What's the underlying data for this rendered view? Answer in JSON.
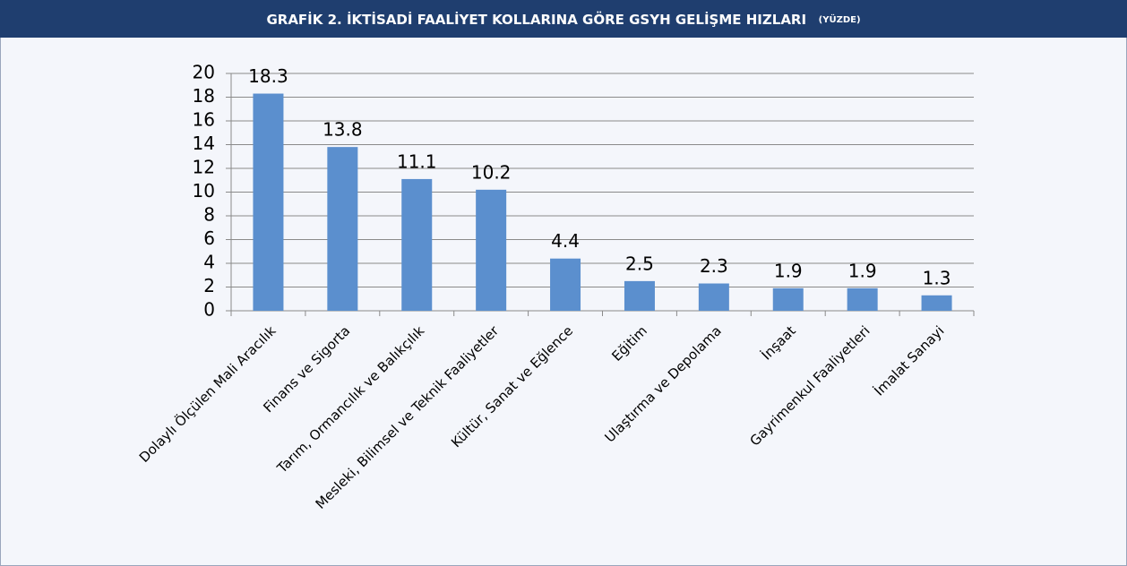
{
  "chart_data": {
    "type": "bar",
    "title": "GRAFİK 2. İKTİSADİ FAALİYET KOLLARINA GÖRE GSYH GELİŞME HIZLARI",
    "subtitle": "(YÜZDE)",
    "categories": [
      "Dolaylı Ölçülen Mali Aracılık",
      "Finans ve Sigorta",
      "Tarım, Ormancılık ve Balıkçılık",
      "Mesleki, Bilimsel ve Teknik Faaliyetler",
      "Kültür, Sanat ve Eğlence",
      "Eğitim",
      "Ulaştırma ve Depolama",
      "İnşaat",
      "Gayrimenkul Faaliyetleri",
      "İmalat Sanayi"
    ],
    "values": [
      18.3,
      13.8,
      11.1,
      10.2,
      4.4,
      2.5,
      2.3,
      1.9,
      1.9,
      1.3
    ],
    "color": "#5b8fce",
    "ylim": [
      0,
      20
    ],
    "yticks": [
      0,
      2,
      4,
      6,
      8,
      10,
      12,
      14,
      16,
      18,
      20
    ],
    "grid": true
  }
}
